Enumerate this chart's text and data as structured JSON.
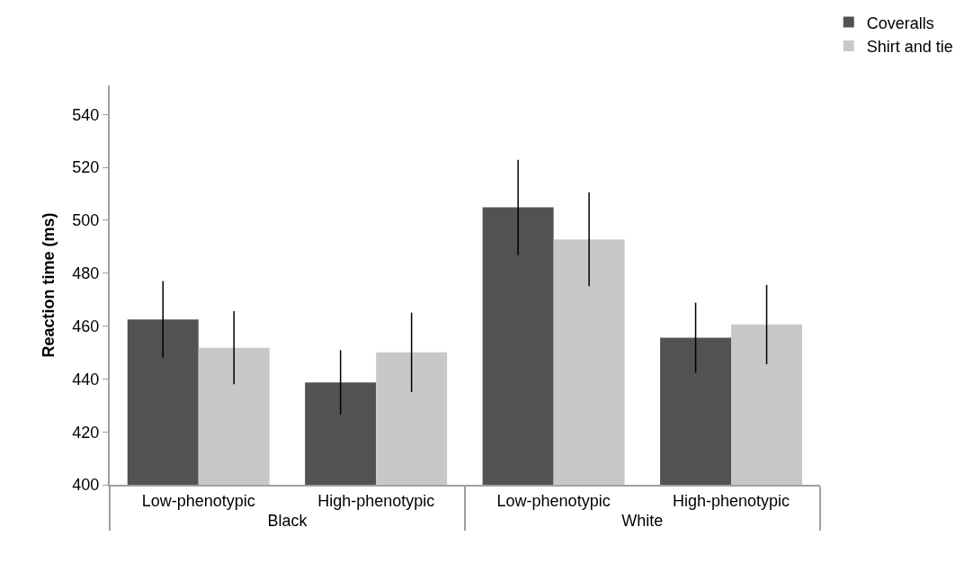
{
  "chart_data": {
    "type": "bar",
    "ylabel": "Reaction time (ms)",
    "categories": [
      "Low-phenotypic",
      "High-phenotypic",
      "Low-phenotypic",
      "High-phenotypic"
    ],
    "annotations": [
      "Black",
      "White"
    ],
    "series": [
      {
        "name": "Coveralls",
        "color": "#525252",
        "values": [
          462.5,
          438.7,
          504.9,
          455.6
        ],
        "errors": [
          14.5,
          12.2,
          18,
          13.3
        ]
      },
      {
        "name": "Shirt and tie",
        "color": "#c8c8c8",
        "values": [
          451.8,
          450.1,
          492.8,
          460.6
        ],
        "errors": [
          13.8,
          15,
          17.7,
          15
        ]
      }
    ],
    "ylim": [
      400,
      551
    ],
    "yticks": [
      400,
      420,
      440,
      460,
      480,
      500,
      520,
      540
    ],
    "legend": "top right"
  }
}
